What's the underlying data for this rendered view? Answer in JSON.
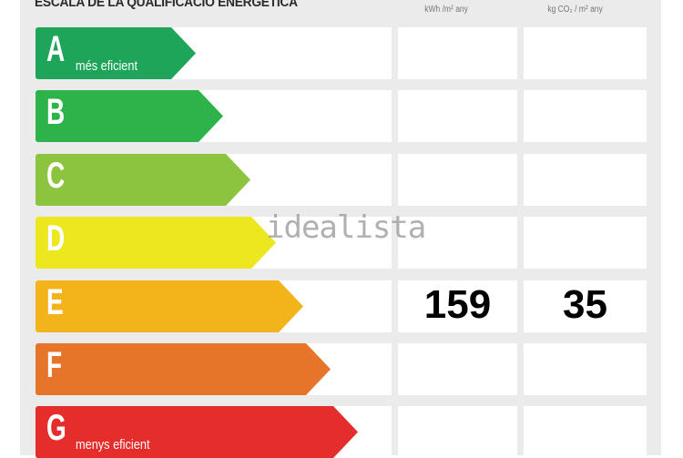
{
  "title": "ESCALA DE LA QUALIFICACIÓ ENERGÈTICA",
  "headers": {
    "energy": "kWh /m² any",
    "emissions": "kg CO₂ / m² any"
  },
  "watermark": "idealista",
  "ratings": [
    {
      "letter": "A",
      "label": "més eficient",
      "color": "#1fa55a"
    },
    {
      "letter": "B",
      "label": "",
      "color": "#2db34a"
    },
    {
      "letter": "C",
      "label": "",
      "color": "#8cc43f"
    },
    {
      "letter": "D",
      "label": "",
      "color": "#ece71f"
    },
    {
      "letter": "E",
      "label": "",
      "color": "#f3b31a"
    },
    {
      "letter": "F",
      "label": "",
      "color": "#e6752a"
    },
    {
      "letter": "G",
      "label": "menys eficient",
      "color": "#e52d2b"
    }
  ],
  "current": {
    "rating": "E",
    "energy": "159",
    "emissions": "35"
  }
}
